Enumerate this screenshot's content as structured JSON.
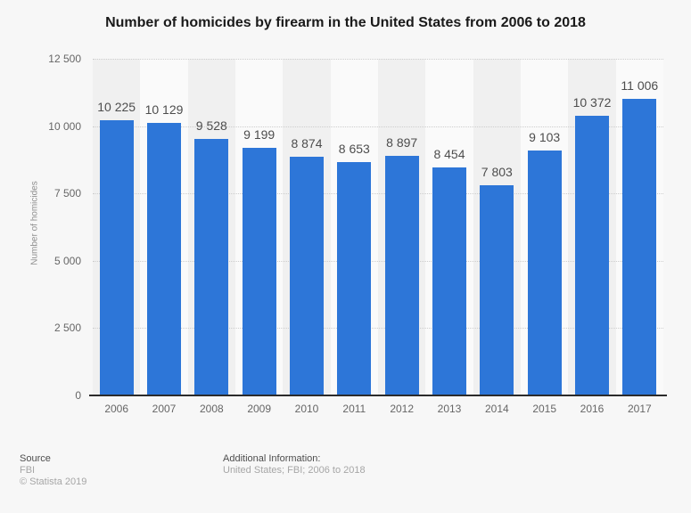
{
  "title": "Number of homicides by firearm in the United States from 2006 to 2018",
  "chart_data": {
    "type": "bar",
    "title": "Number of homicides by firearm in the United States from 2006 to 2018",
    "categories": [
      "2006",
      "2007",
      "2008",
      "2009",
      "2010",
      "2011",
      "2012",
      "2013",
      "2014",
      "2015",
      "2016",
      "2017"
    ],
    "values": [
      10225,
      10129,
      9528,
      9199,
      8874,
      8653,
      8897,
      8454,
      7803,
      9103,
      10372,
      11006
    ],
    "value_labels": [
      "10 225",
      "10 129",
      "9 528",
      "9 199",
      "8 874",
      "8 653",
      "8 897",
      "8 454",
      "7 803",
      "9 103",
      "10 372",
      "11 006"
    ],
    "xlabel": "",
    "ylabel": "Number of homicides",
    "ylim": [
      0,
      12500
    ],
    "yticks": [
      0,
      2500,
      5000,
      7500,
      10000,
      12500
    ],
    "ytick_labels": [
      "0",
      "2 500",
      "5 000",
      "7 500",
      "10 000",
      "12 500"
    ],
    "grid": "horizontal dotted lines, drawn behind bars",
    "legend": "none",
    "bar_color": "#2d76d8",
    "stripe_colors": [
      "#f0f0f0",
      "#fafafa"
    ],
    "axis_line_color": "#2b2b2b"
  },
  "footer": {
    "source_label": "Source",
    "source_value": "FBI",
    "copyright": "© Statista 2019",
    "additional_label": "Additional Information:",
    "additional_value": "United States; FBI; 2006 to 2018"
  }
}
